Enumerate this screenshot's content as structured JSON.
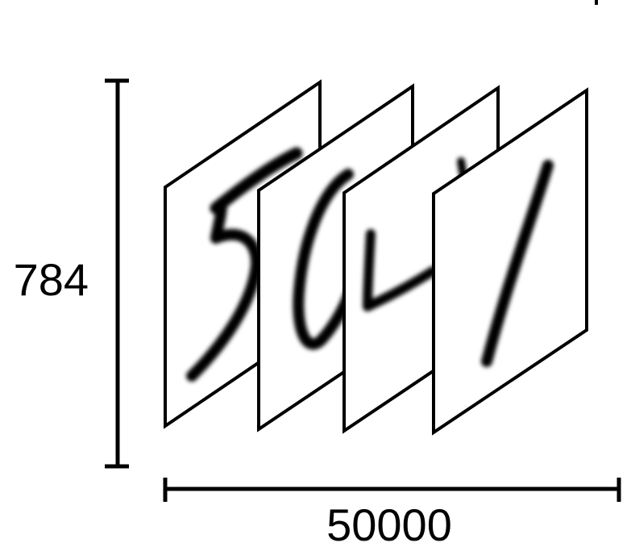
{
  "diagram": {
    "height_label": "784",
    "width_label": "50000",
    "cards": [
      {
        "digit": "5"
      },
      {
        "digit": "0"
      },
      {
        "digit": "4"
      },
      {
        "digit": "1"
      }
    ],
    "colors": {
      "ink": "#000000",
      "paper": "#ffffff"
    }
  }
}
